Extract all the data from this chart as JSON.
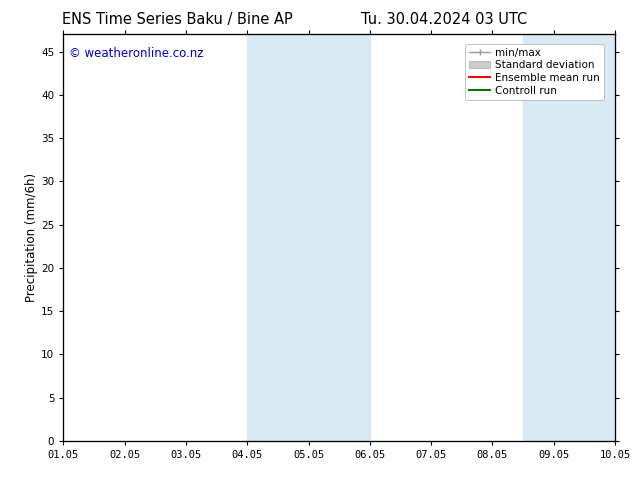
{
  "title_left": "ENS Time Series Baku / Bine AP",
  "title_right": "Tu. 30.04.2024 03 UTC",
  "ylabel": "Precipitation (mm/6h)",
  "watermark": "© weatheronline.co.nz",
  "xtick_labels": [
    "01.05",
    "02.05",
    "03.05",
    "04.05",
    "05.05",
    "06.05",
    "07.05",
    "08.05",
    "09.05",
    "10.05"
  ],
  "ytick_values": [
    0,
    5,
    10,
    15,
    20,
    25,
    30,
    35,
    40,
    45
  ],
  "ylim": [
    0,
    47
  ],
  "xlim": [
    0,
    9
  ],
  "shade_regions": [
    {
      "x_start": 3.0,
      "x_end": 3.5,
      "color": "#daeaf5"
    },
    {
      "x_start": 3.5,
      "x_end": 5.0,
      "color": "#daeaf5"
    },
    {
      "x_start": 7.5,
      "x_end": 8.0,
      "color": "#daeaf5"
    },
    {
      "x_start": 8.0,
      "x_end": 9.0,
      "color": "#daeaf5"
    }
  ],
  "legend_items": [
    {
      "label": "min/max",
      "color": "#999999",
      "lw": 1.0
    },
    {
      "label": "Standard deviation",
      "color": "#cccccc",
      "lw": 6
    },
    {
      "label": "Ensemble mean run",
      "color": "#ff0000",
      "lw": 1.5
    },
    {
      "label": "Controll run",
      "color": "#007700",
      "lw": 1.5
    }
  ],
  "bg_color": "#ffffff",
  "plot_bg_color": "#ffffff",
  "title_fontsize": 10.5,
  "watermark_color": "#0000cc",
  "watermark_fontsize": 8.5,
  "tick_fontsize": 7.5,
  "ylabel_fontsize": 8.5,
  "legend_fontsize": 7.5
}
